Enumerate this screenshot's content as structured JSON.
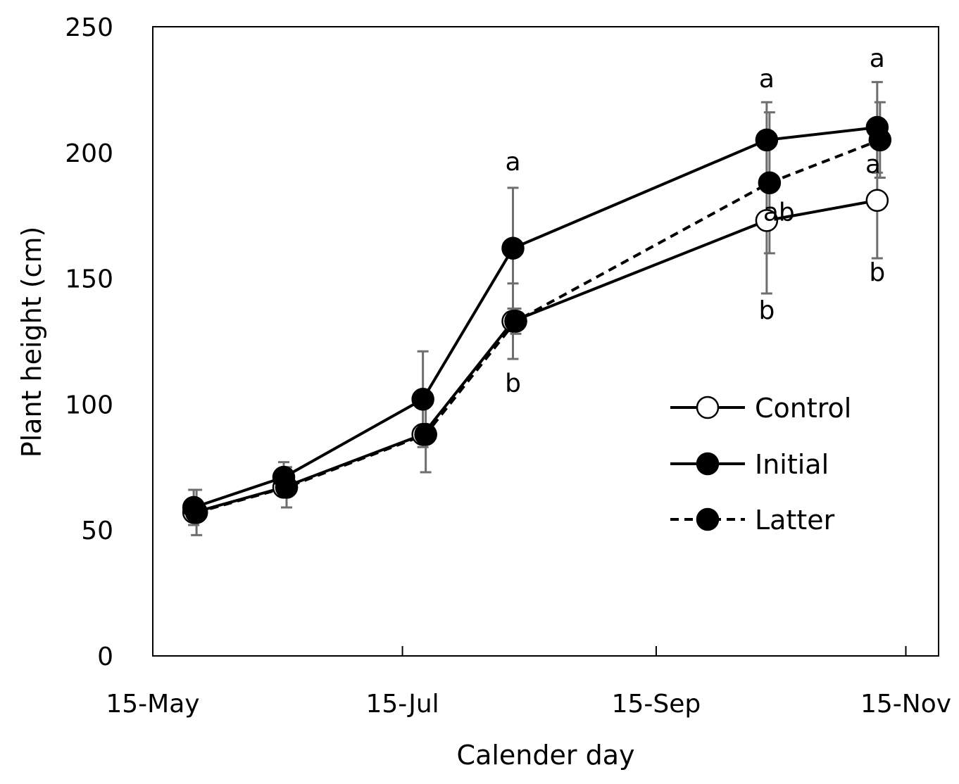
{
  "chart_data": {
    "type": "line",
    "title": "",
    "xlabel": "Calender day",
    "ylabel": "Plant height (cm)",
    "ylim": [
      0,
      250
    ],
    "yticks": [
      0,
      50,
      100,
      150,
      200,
      250
    ],
    "x_tick_labels": [
      "15-May",
      "15-Jul",
      "15-Sep",
      "15-Nov"
    ],
    "xlim_days": [
      0,
      192
    ],
    "x_tick_days": [
      0,
      61,
      123,
      184
    ],
    "x_days": [
      10,
      32,
      66,
      88,
      150,
      177
    ],
    "grid": false,
    "legend_position": "center-right",
    "series": [
      {
        "name": "Control",
        "marker": "open-circle",
        "line": "solid",
        "values": [
          57,
          67,
          88,
          133,
          173,
          181
        ],
        "errors": [
          null,
          null,
          null,
          15,
          29,
          23
        ]
      },
      {
        "name": "Initial",
        "marker": "filled-circle",
        "line": "solid",
        "values": [
          59,
          71,
          102,
          162,
          205,
          210
        ],
        "errors": [
          7,
          6,
          19,
          24,
          15,
          18
        ]
      },
      {
        "name": "Latter",
        "marker": "filled-circle",
        "line": "dashed",
        "values": [
          57,
          67,
          88,
          133,
          188,
          205
        ],
        "errors": [
          9,
          8,
          15,
          5,
          28,
          15
        ]
      }
    ],
    "annotations": [
      {
        "text": "a",
        "day": 88,
        "value": 193
      },
      {
        "text": "b",
        "day": 88,
        "value": 105
      },
      {
        "text": "a",
        "day": 150,
        "value": 226
      },
      {
        "text": "ab",
        "day": 153,
        "value": 173
      },
      {
        "text": "b",
        "day": 150,
        "value": 134
      },
      {
        "text": "a",
        "day": 177,
        "value": 234
      },
      {
        "text": "a",
        "day": 176,
        "value": 192
      },
      {
        "text": "b",
        "day": 177,
        "value": 149
      }
    ]
  }
}
